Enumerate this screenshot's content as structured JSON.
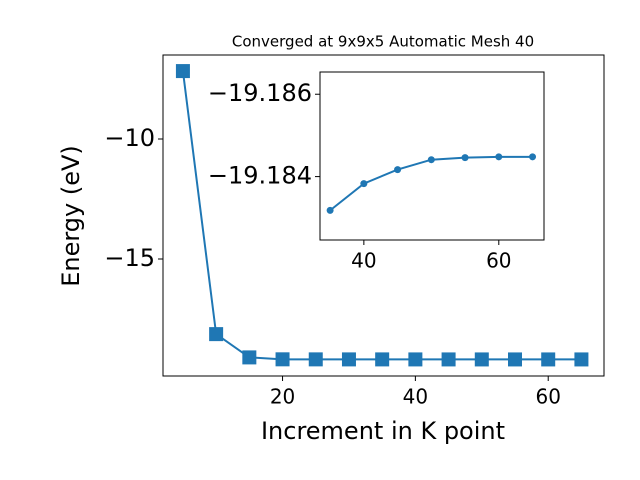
{
  "chart_data": [
    {
      "type": "line",
      "title": "Converged at 9x9x5 Automatic Mesh 40",
      "xlabel": "Increment in K point",
      "ylabel": "Energy (eV)",
      "x": [
        5,
        10,
        15,
        20,
        25,
        30,
        35,
        40,
        45,
        50,
        55,
        60,
        65
      ],
      "series": [
        {
          "color": "#1f77b4",
          "marker": "square",
          "values": [
            -7.17,
            -18.13,
            -19.1,
            -19.18,
            -19.182,
            -19.183,
            -19.18318,
            -19.18383,
            -19.18417,
            -19.18441,
            -19.18446,
            -19.18448,
            -19.18448
          ]
        }
      ],
      "xlim": [
        2,
        68.4
      ],
      "ylim": [
        -19.875,
        -6.5
      ],
      "xticks": [
        20,
        40,
        60
      ],
      "yticks": [
        {
          "value": -10,
          "label": "−10"
        },
        {
          "value": -15,
          "label": "−15"
        }
      ]
    },
    {
      "type": "line",
      "x": [
        35,
        40,
        45,
        50,
        55,
        60,
        65
      ],
      "series": [
        {
          "color": "#1f77b4",
          "marker": "circle",
          "values": [
            -19.18318,
            -19.18383,
            -19.18417,
            -19.18441,
            -19.18446,
            -19.18448,
            -19.18448
          ]
        }
      ],
      "xlim": [
        33.5,
        66.7
      ],
      "ylim": [
        -19.18246,
        -19.18654
      ],
      "xticks": [
        40,
        60
      ],
      "yticks": [
        {
          "value": -19.186,
          "label": "−19.186"
        },
        {
          "value": -19.184,
          "label": "−19.184"
        }
      ]
    }
  ]
}
